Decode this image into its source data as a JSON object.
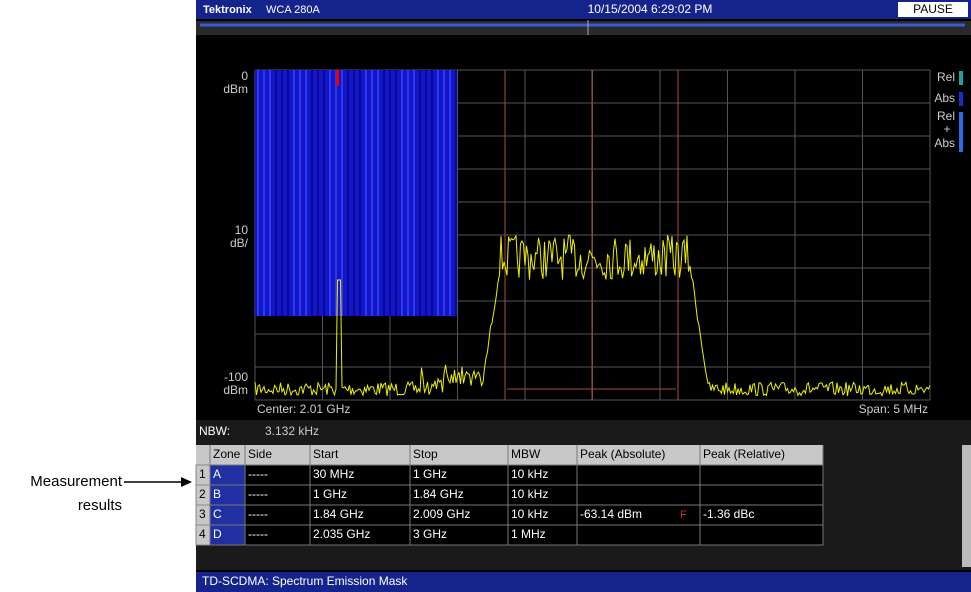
{
  "header": {
    "brand": "Tektronix",
    "model": "WCA 280A",
    "datetime": "10/15/2004 6:29:02 PM",
    "status": "PAUSE"
  },
  "plot": {
    "ref_level": "0",
    "ref_unit": "dBm",
    "scale": "10",
    "scale_unit": "dB/",
    "bottom_level": "-100",
    "bottom_unit": "dBm",
    "center": "Center: 2.01 GHz",
    "span": "Span: 5 MHz"
  },
  "legend": {
    "rel": "Rel",
    "abs": "Abs",
    "rel2": "Rel",
    "plus": "+",
    "abs2": "Abs"
  },
  "nbw": {
    "label": "NBW:",
    "value": "3.132 kHz"
  },
  "table": {
    "headers": [
      "Zone",
      "Side",
      "Start",
      "Stop",
      "MBW",
      "Peak (Absolute)",
      "Peak (Relative)"
    ],
    "row_numbers": [
      "1",
      "2",
      "3",
      "4"
    ],
    "rows": [
      [
        "A",
        "-----",
        "30 MHz",
        "1 GHz",
        "10 kHz",
        "",
        ""
      ],
      [
        "B",
        "-----",
        "1 GHz",
        "1.84 GHz",
        "10 kHz",
        "",
        ""
      ],
      [
        "C",
        "-----",
        "1.84 GHz",
        "2.009 GHz",
        "10 kHz",
        "-63.14 dBm",
        "-1.36 dBc"
      ],
      [
        "D",
        "-----",
        "2.035 GHz",
        "3 GHz",
        "1 MHz",
        "",
        ""
      ]
    ],
    "flag": "F"
  },
  "footer": {
    "title": "TD-SCDMA: Spectrum Emission Mask"
  },
  "callout": {
    "line1": "Measurement",
    "line2": "results"
  }
}
